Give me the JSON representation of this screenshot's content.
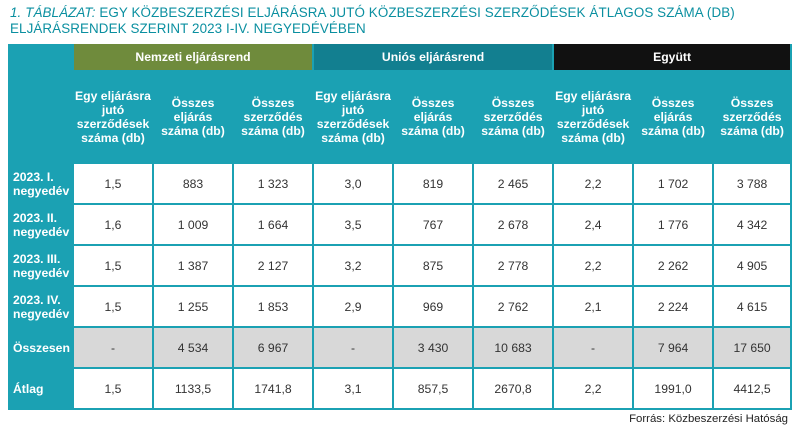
{
  "title": {
    "prefix": "1. TÁBLÁZAT:",
    "line1": "EGY KÖZBESZERZÉSI ELJÁRÁSRA JUTÓ KÖZBESZERZÉSI SZERZŐDÉSEK ÁTLAGOS SZÁMA (DB)",
    "line2": "ELJÁRÁSRENDEK SZERINT 2023 I-IV. NEGYEDÉVÉBEN"
  },
  "groups": {
    "national": "Nemzeti eljárásrend",
    "eu": "Uniós eljárásrend",
    "total": "Együtt"
  },
  "colors": {
    "national": "#6f8b3c",
    "eu": "#127f90",
    "total": "#111111",
    "accent": "#1ba1b3"
  },
  "subheaders": {
    "avg": "Egy eljárásra jutó szerződések száma (db)",
    "procedures": "Összes eljárás száma (db)",
    "contracts": "Összes szerződés száma (db)"
  },
  "rows": [
    {
      "label": "2023. I. negyedév",
      "values": [
        "1,5",
        "883",
        "1 323",
        "3,0",
        "819",
        "2 465",
        "2,2",
        "1 702",
        "3 788"
      ]
    },
    {
      "label": "2023. II. negyedév",
      "values": [
        "1,6",
        "1 009",
        "1 664",
        "3,5",
        "767",
        "2 678",
        "2,4",
        "1 776",
        "4 342"
      ]
    },
    {
      "label": "2023. III. negyedév",
      "values": [
        "1,5",
        "1 387",
        "2 127",
        "3,2",
        "875",
        "2 778",
        "2,2",
        "2 262",
        "4 905"
      ]
    },
    {
      "label": "2023. IV. negyedév",
      "values": [
        "1,5",
        "1 255",
        "1 853",
        "2,9",
        "969",
        "2 762",
        "2,1",
        "2 224",
        "4 615"
      ]
    },
    {
      "label": "Összesen",
      "values": [
        "-",
        "4 534",
        "6 967",
        "-",
        "3 430",
        "10 683",
        "-",
        "7 964",
        "17 650"
      ]
    },
    {
      "label": "Átlag",
      "values": [
        "1,5",
        "1133,5",
        "1741,8",
        "3,1",
        "857,5",
        "2670,8",
        "2,2",
        "1991,0",
        "4412,5"
      ]
    }
  ],
  "source": "Forrás: Közbeszerzési Hatóság"
}
